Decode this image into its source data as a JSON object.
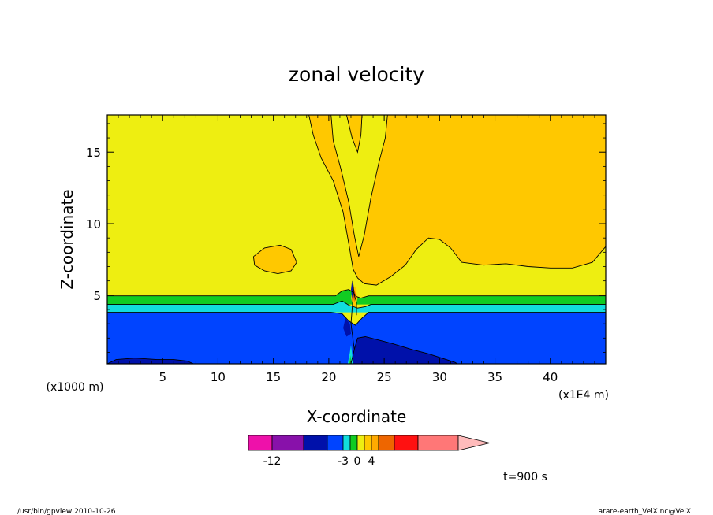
{
  "chart_data": {
    "type": "contour",
    "title": "zonal velocity",
    "xlabel": "X-coordinate",
    "ylabel": "Z-coordinate",
    "x_unit_note": "(x1E4 m)",
    "y_unit_note": "(x1000 m)",
    "xlim": [
      0,
      45
    ],
    "ylim": [
      0.2,
      17.6
    ],
    "x_ticks": [
      5,
      10,
      15,
      20,
      25,
      30,
      35,
      40
    ],
    "x_tick_labels": [
      "5",
      "10",
      "15",
      "20",
      "25",
      "30",
      "35",
      "40"
    ],
    "y_ticks": [
      5,
      10,
      15
    ],
    "y_tick_labels": [
      "5",
      "10",
      "15"
    ],
    "background_level_color": "#eeee11",
    "regions": [
      {
        "name": "upper-core",
        "color": "#ffc800",
        "points": [
          [
            18.2,
            17.6
          ],
          [
            18.6,
            16.2
          ],
          [
            19.3,
            14.6
          ],
          [
            20.4,
            13.0
          ],
          [
            21.3,
            10.8
          ],
          [
            21.8,
            8.6
          ],
          [
            22.2,
            6.8
          ],
          [
            22.6,
            6.2
          ],
          [
            23.2,
            5.8
          ],
          [
            24.3,
            5.7
          ],
          [
            25.6,
            6.3
          ],
          [
            26.9,
            7.1
          ],
          [
            27.9,
            8.2
          ],
          [
            29.0,
            9.0
          ],
          [
            30.0,
            8.9
          ],
          [
            31.0,
            8.3
          ],
          [
            32.0,
            7.3
          ],
          [
            34.0,
            7.1
          ],
          [
            36.0,
            7.2
          ],
          [
            38.0,
            7.0
          ],
          [
            40.0,
            6.9
          ],
          [
            42.0,
            6.9
          ],
          [
            43.8,
            7.3
          ],
          [
            45.0,
            8.4
          ],
          [
            45.0,
            17.6
          ]
        ]
      },
      {
        "name": "inner-plume",
        "color": "#eeee11",
        "points": [
          [
            20.2,
            17.6
          ],
          [
            20.4,
            15.8
          ],
          [
            21.1,
            13.8
          ],
          [
            21.8,
            11.5
          ],
          [
            22.3,
            9.2
          ],
          [
            22.7,
            7.7
          ],
          [
            23.2,
            9.2
          ],
          [
            23.8,
            11.8
          ],
          [
            24.5,
            14.2
          ],
          [
            25.1,
            16.0
          ],
          [
            25.3,
            17.6
          ]
        ]
      },
      {
        "name": "core-strip",
        "color": "#ffc800",
        "points": [
          [
            21.6,
            17.6
          ],
          [
            22.1,
            16.0
          ],
          [
            22.6,
            15.0
          ],
          [
            22.9,
            16.2
          ],
          [
            23.0,
            17.6
          ]
        ]
      },
      {
        "name": "left-patch",
        "color": "#ffc800",
        "points": [
          [
            13.2,
            7.7
          ],
          [
            14.2,
            8.3
          ],
          [
            15.6,
            8.5
          ],
          [
            16.6,
            8.2
          ],
          [
            17.1,
            7.3
          ],
          [
            16.6,
            6.7
          ],
          [
            15.4,
            6.5
          ],
          [
            14.2,
            6.7
          ],
          [
            13.3,
            7.1
          ]
        ]
      },
      {
        "name": "green-layer",
        "color": "#11cc22",
        "points": [
          [
            0,
            4.95
          ],
          [
            20.6,
            4.95
          ],
          [
            21.2,
            5.3
          ],
          [
            21.8,
            5.4
          ],
          [
            22.2,
            5.2
          ],
          [
            22.5,
            4.9
          ],
          [
            22.9,
            4.8
          ],
          [
            23.6,
            4.95
          ],
          [
            45.0,
            4.95
          ],
          [
            45.0,
            4.35
          ],
          [
            0,
            4.35
          ]
        ]
      },
      {
        "name": "cyan-layer",
        "color": "#11dddd",
        "points": [
          [
            0,
            4.35
          ],
          [
            20.4,
            4.35
          ],
          [
            21.2,
            4.6
          ],
          [
            21.8,
            4.3
          ],
          [
            22.6,
            4.1
          ],
          [
            23.3,
            4.2
          ],
          [
            23.8,
            4.35
          ],
          [
            45.0,
            4.35
          ],
          [
            45.0,
            3.8
          ],
          [
            0,
            3.8
          ]
        ]
      },
      {
        "name": "blue-layer",
        "color": "#0044ff",
        "points": [
          [
            0,
            3.8
          ],
          [
            20.2,
            3.8
          ],
          [
            21.2,
            3.7
          ],
          [
            21.8,
            3.2
          ],
          [
            22.4,
            2.9
          ],
          [
            23.0,
            3.4
          ],
          [
            23.6,
            3.8
          ],
          [
            45.0,
            3.8
          ],
          [
            45.0,
            0.2
          ],
          [
            0,
            0.2
          ]
        ]
      },
      {
        "name": "navy-lee",
        "color": "#0011aa",
        "points": [
          [
            22.6,
            2.0
          ],
          [
            23.3,
            2.1
          ],
          [
            24.3,
            1.9
          ],
          [
            25.8,
            1.6
          ],
          [
            27.5,
            1.2
          ],
          [
            29.0,
            0.9
          ],
          [
            30.2,
            0.6
          ],
          [
            31.4,
            0.3
          ],
          [
            31.6,
            0.2
          ],
          [
            22.0,
            0.2
          ],
          [
            22.3,
            1.2
          ]
        ]
      },
      {
        "name": "navy-left",
        "color": "#0011aa",
        "points": [
          [
            0,
            0.2
          ],
          [
            0.8,
            0.5
          ],
          [
            2.5,
            0.6
          ],
          [
            4.5,
            0.5
          ],
          [
            6.0,
            0.5
          ],
          [
            7.2,
            0.4
          ],
          [
            7.8,
            0.2
          ]
        ]
      },
      {
        "name": "navy-notch",
        "color": "#0011aa",
        "points": [
          [
            21.5,
            3.4
          ],
          [
            21.9,
            3.0
          ],
          [
            22.0,
            2.3
          ],
          [
            21.6,
            2.1
          ],
          [
            21.3,
            2.7
          ]
        ]
      },
      {
        "name": "mountain-cyan",
        "color": "#11dddd",
        "points": [
          [
            21.7,
            0.2
          ],
          [
            21.9,
            1.0
          ],
          [
            22.0,
            1.5
          ],
          [
            22.1,
            0.9
          ],
          [
            22.2,
            0.2
          ]
        ]
      },
      {
        "name": "mountain-green",
        "color": "#11cc22",
        "points": [
          [
            21.85,
            0.2
          ],
          [
            21.95,
            0.8
          ],
          [
            22.05,
            0.2
          ]
        ]
      },
      {
        "name": "spike-orange",
        "color": "#ffc800",
        "points": [
          [
            22.0,
            4.8
          ],
          [
            22.2,
            5.6
          ],
          [
            22.4,
            5.6
          ],
          [
            22.6,
            4.8
          ],
          [
            22.4,
            4.2
          ],
          [
            22.2,
            4.2
          ]
        ]
      },
      {
        "name": "spike-red",
        "color": "#ee6600",
        "points": [
          [
            22.15,
            5.0
          ],
          [
            22.3,
            5.4
          ],
          [
            22.45,
            5.0
          ],
          [
            22.3,
            4.5
          ]
        ]
      },
      {
        "name": "spike-navy",
        "color": "#0011aa",
        "points": [
          [
            22.0,
            5.4
          ],
          [
            22.1,
            6.0
          ],
          [
            22.2,
            5.2
          ],
          [
            22.15,
            4.6
          ]
        ]
      }
    ],
    "contour_lines": [
      [
        [
          18.2,
          17.6
        ],
        [
          18.6,
          16.2
        ],
        [
          19.3,
          14.6
        ],
        [
          20.4,
          13.0
        ],
        [
          21.3,
          10.8
        ],
        [
          21.8,
          8.6
        ],
        [
          22.2,
          6.8
        ],
        [
          22.6,
          6.2
        ],
        [
          23.2,
          5.8
        ],
        [
          24.3,
          5.7
        ],
        [
          25.6,
          6.3
        ],
        [
          26.9,
          7.1
        ],
        [
          27.9,
          8.2
        ],
        [
          29.0,
          9.0
        ],
        [
          30.0,
          8.9
        ],
        [
          31.0,
          8.3
        ],
        [
          32.0,
          7.3
        ],
        [
          34.0,
          7.1
        ],
        [
          36.0,
          7.2
        ],
        [
          38.0,
          7.0
        ],
        [
          40.0,
          6.9
        ],
        [
          42.0,
          6.9
        ],
        [
          43.8,
          7.3
        ],
        [
          45.0,
          8.4
        ]
      ],
      [
        [
          20.2,
          17.6
        ],
        [
          20.4,
          15.8
        ],
        [
          21.1,
          13.8
        ],
        [
          21.8,
          11.5
        ],
        [
          22.3,
          9.2
        ],
        [
          22.7,
          7.7
        ],
        [
          23.2,
          9.2
        ],
        [
          23.8,
          11.8
        ],
        [
          24.5,
          14.2
        ],
        [
          25.1,
          16.0
        ],
        [
          25.3,
          17.6
        ]
      ],
      [
        [
          21.6,
          17.6
        ],
        [
          22.1,
          16.0
        ],
        [
          22.6,
          15.0
        ],
        [
          22.9,
          16.2
        ],
        [
          23.0,
          17.6
        ]
      ],
      [
        [
          13.2,
          7.7
        ],
        [
          14.2,
          8.3
        ],
        [
          15.6,
          8.5
        ],
        [
          16.6,
          8.2
        ],
        [
          17.1,
          7.3
        ],
        [
          16.6,
          6.7
        ],
        [
          15.4,
          6.5
        ],
        [
          14.2,
          6.7
        ],
        [
          13.3,
          7.1
        ],
        [
          13.2,
          7.7
        ]
      ],
      [
        [
          0,
          4.95
        ],
        [
          20.6,
          4.95
        ],
        [
          21.2,
          5.3
        ],
        [
          21.8,
          5.4
        ],
        [
          22.2,
          5.2
        ],
        [
          22.5,
          4.9
        ],
        [
          22.9,
          4.8
        ],
        [
          23.6,
          4.95
        ],
        [
          45.0,
          4.95
        ]
      ],
      [
        [
          0,
          4.35
        ],
        [
          20.4,
          4.35
        ],
        [
          21.2,
          4.6
        ],
        [
          21.8,
          4.3
        ],
        [
          22.6,
          4.1
        ],
        [
          23.3,
          4.2
        ],
        [
          23.8,
          4.35
        ],
        [
          45.0,
          4.35
        ]
      ],
      [
        [
          0,
          3.8
        ],
        [
          20.2,
          3.8
        ],
        [
          21.2,
          3.7
        ],
        [
          21.8,
          3.2
        ],
        [
          22.4,
          2.9
        ],
        [
          23.0,
          3.4
        ],
        [
          23.6,
          3.8
        ],
        [
          45.0,
          3.8
        ]
      ],
      [
        [
          22.0,
          0.2
        ],
        [
          22.3,
          1.2
        ],
        [
          22.6,
          2.0
        ],
        [
          23.3,
          2.1
        ],
        [
          24.3,
          1.9
        ],
        [
          25.8,
          1.6
        ],
        [
          27.5,
          1.2
        ],
        [
          29.0,
          0.9
        ],
        [
          30.2,
          0.6
        ],
        [
          31.4,
          0.3
        ],
        [
          31.6,
          0.2
        ]
      ],
      [
        [
          0,
          0.2
        ],
        [
          0.8,
          0.5
        ],
        [
          2.5,
          0.6
        ],
        [
          4.5,
          0.5
        ],
        [
          6.0,
          0.5
        ],
        [
          7.2,
          0.4
        ],
        [
          7.8,
          0.2
        ]
      ],
      [
        [
          22.3,
          1.2
        ],
        [
          22.0,
          3.0
        ],
        [
          22.1,
          4.0
        ],
        [
          22.2,
          5.0
        ],
        [
          22.15,
          6.0
        ],
        [
          22.3,
          5.0
        ],
        [
          22.5,
          4.5
        ],
        [
          22.5,
          3.6
        ]
      ]
    ],
    "colorbar": {
      "colors": [
        "#ee11aa",
        "#8811aa",
        "#0011aa",
        "#0044ff",
        "#11dddd",
        "#11cc22",
        "#eeee11",
        "#ffc800",
        "#ffaa00",
        "#ee6600",
        "#ff1111",
        "#ff7777"
      ],
      "extension_color": "#ffbbbb",
      "tick_labels": [
        {
          "label": "-12",
          "after_box": 1
        },
        {
          "label": "-3",
          "after_box": 4
        },
        {
          "label": "0",
          "after_box": 6
        },
        {
          "label": "4",
          "after_box": 8
        }
      ]
    }
  },
  "annotations": {
    "time": "t=900 s",
    "footer_left": "/usr/bin/gpview  2010-10-26",
    "footer_right": "arare-earth_VelX.nc@VelX"
  }
}
